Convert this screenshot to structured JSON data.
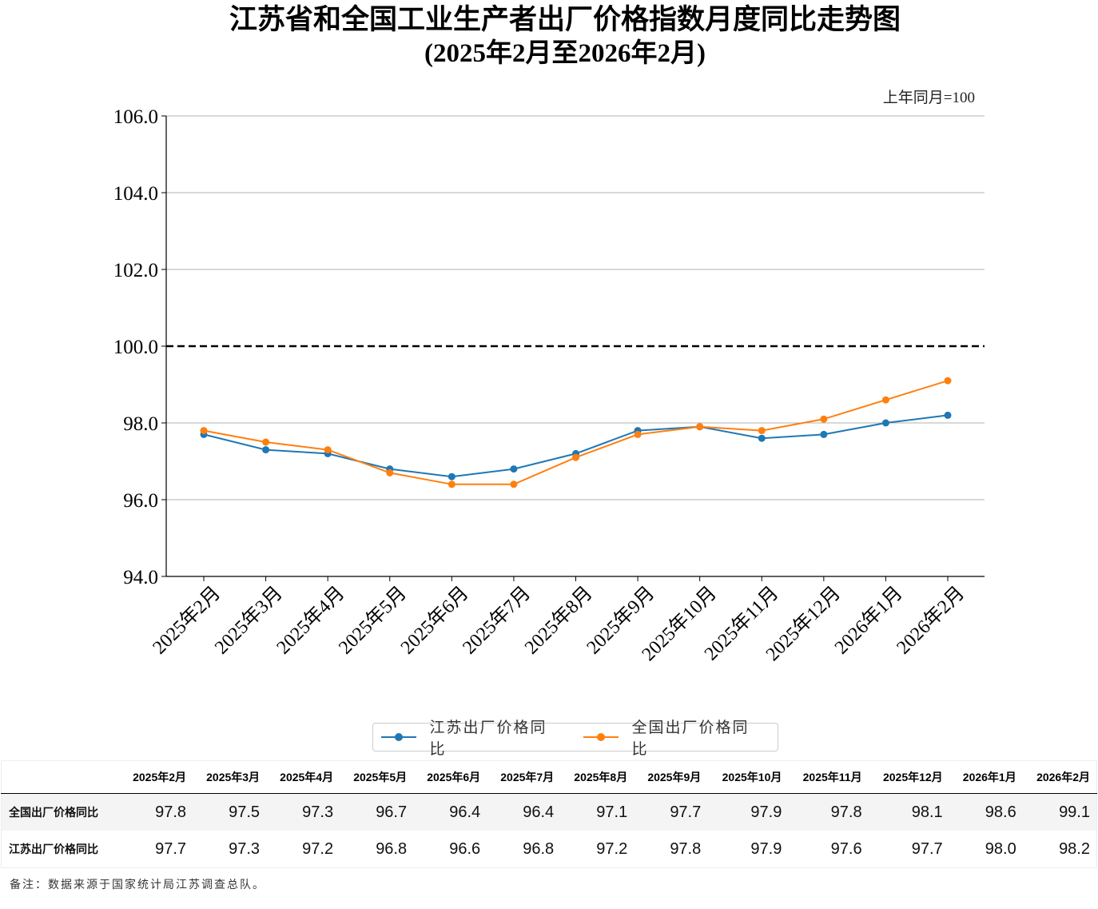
{
  "chart_data": {
    "type": "line",
    "title": "江苏省和全国工业生产者出厂价格指数月度同比走势图",
    "subtitle": "(2025年2月至2026年2月)",
    "unit_note": "上年同月=100",
    "xlabel": "",
    "ylabel": "",
    "ylim": [
      94.0,
      106.0
    ],
    "yticks": [
      "94.0",
      "96.0",
      "98.0",
      "100.0",
      "102.0",
      "104.0",
      "106.0"
    ],
    "ytick_values": [
      94,
      96,
      98,
      100,
      102,
      104,
      106
    ],
    "reference_line": 100.0,
    "grid": "horizontal",
    "legend_position": "bottom-center",
    "categories": [
      "2025年2月",
      "2025年3月",
      "2025年4月",
      "2025年5月",
      "2025年6月",
      "2025年7月",
      "2025年8月",
      "2025年9月",
      "2025年10月",
      "2025年11月",
      "2025年12月",
      "2026年1月",
      "2026年2月"
    ],
    "series": [
      {
        "name": "江苏出厂价格同比",
        "color": "#1f77b4",
        "values": [
          97.7,
          97.3,
          97.2,
          96.8,
          96.6,
          96.8,
          97.2,
          97.8,
          97.9,
          97.6,
          97.7,
          98.0,
          98.2
        ]
      },
      {
        "name": "全国出厂价格同比",
        "color": "#ff7f0e",
        "values": [
          97.8,
          97.5,
          97.3,
          96.7,
          96.4,
          96.4,
          97.1,
          97.7,
          97.9,
          97.8,
          98.1,
          98.6,
          99.1
        ]
      }
    ]
  },
  "table": {
    "headers": [
      "2025年2月",
      "2025年3月",
      "2025年4月",
      "2025年5月",
      "2025年6月",
      "2025年7月",
      "2025年8月",
      "2025年9月",
      "2025年10月",
      "2025年11月",
      "2025年12月",
      "2026年1月",
      "2026年2月"
    ],
    "rows": [
      {
        "label": "全国出厂价格同比",
        "values": [
          "97.8",
          "97.5",
          "97.3",
          "96.7",
          "96.4",
          "96.4",
          "97.1",
          "97.7",
          "97.9",
          "97.8",
          "98.1",
          "98.6",
          "99.1"
        ]
      },
      {
        "label": "江苏出厂价格同比",
        "values": [
          "97.7",
          "97.3",
          "97.2",
          "96.8",
          "96.6",
          "96.8",
          "97.2",
          "97.8",
          "97.9",
          "97.6",
          "97.7",
          "98.0",
          "98.2"
        ]
      }
    ]
  },
  "footnote": "备注：数据来源于国家统计局江苏调查总队。"
}
